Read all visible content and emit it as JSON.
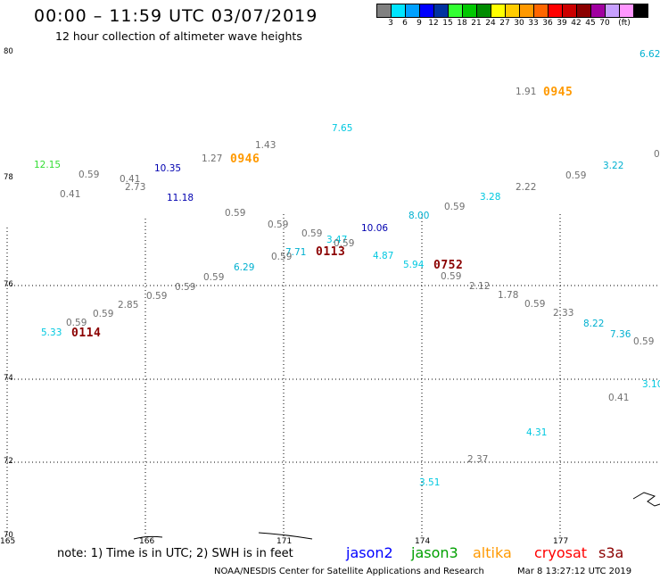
{
  "header": {
    "title": "00:00 – 11:59 UTC 03/07/2019",
    "subtitle": "12 hour collection of altimeter wave heights"
  },
  "legend": {
    "colors": [
      "#808080",
      "#00e5ff",
      "#00a0ff",
      "#0000ff",
      "#0032a0",
      "#32ff32",
      "#00c800",
      "#008c00",
      "#ffff00",
      "#ffcc00",
      "#ff9900",
      "#ff6600",
      "#ff0000",
      "#cc0000",
      "#8b0000",
      "#a000a0",
      "#c8a0ff",
      "#ff96ff",
      "#000000"
    ],
    "labels": [
      "3",
      "6",
      "9",
      "12",
      "15",
      "18",
      "21",
      "24",
      "27",
      "30",
      "33",
      "36",
      "39",
      "42",
      "45",
      "70",
      "(ft)"
    ]
  },
  "axes": {
    "lat_labels": [
      "80",
      "78",
      "76",
      "74",
      "72",
      "70"
    ],
    "lon_labels": [
      "165",
      "166",
      "171",
      "174",
      "177"
    ]
  },
  "observations": [
    {
      "text": "6.62",
      "color": "#00b0d0"
    },
    {
      "text": "1.91",
      "color": "#707070"
    },
    {
      "text": "7.65",
      "color": "#00c8e0"
    },
    {
      "text": "0",
      "color": "#707070"
    },
    {
      "text": "1.43",
      "color": "#707070"
    },
    {
      "text": "1.27",
      "color": "#707070"
    },
    {
      "text": "12.15",
      "color": "#33dd33"
    },
    {
      "text": "10.35",
      "color": "#0000b0"
    },
    {
      "text": "3.22",
      "color": "#00b0d0"
    },
    {
      "text": "0.59",
      "color": "#707070"
    },
    {
      "text": "0.41",
      "color": "#707070"
    },
    {
      "text": "2.73",
      "color": "#707070"
    },
    {
      "text": "2.22",
      "color": "#707070"
    },
    {
      "text": "0.59",
      "color": "#707070"
    },
    {
      "text": "0.41",
      "color": "#707070"
    },
    {
      "text": "11.18",
      "color": "#0000b0"
    },
    {
      "text": "3.28",
      "color": "#00c8e0"
    },
    {
      "text": "0.59",
      "color": "#707070"
    },
    {
      "text": "8.00",
      "color": "#00b0d0"
    },
    {
      "text": "0.59",
      "color": "#707070"
    },
    {
      "text": "0.59",
      "color": "#707070"
    },
    {
      "text": "10.06",
      "color": "#0000b0"
    },
    {
      "text": "0.59",
      "color": "#707070"
    },
    {
      "text": "3.47",
      "color": "#00c8e0"
    },
    {
      "text": "0.59",
      "color": "#707070"
    },
    {
      "text": "7.71",
      "color": "#00b0d0"
    },
    {
      "text": "0.59",
      "color": "#707070"
    },
    {
      "text": "4.87",
      "color": "#00c8e0"
    },
    {
      "text": "6.29",
      "color": "#00b0d0"
    },
    {
      "text": "5.94",
      "color": "#00c8e0"
    },
    {
      "text": "0.59",
      "color": "#707070"
    },
    {
      "text": "0.59",
      "color": "#707070"
    },
    {
      "text": "0.59",
      "color": "#707070"
    },
    {
      "text": "2.12",
      "color": "#707070"
    },
    {
      "text": "1.78",
      "color": "#707070"
    },
    {
      "text": "0.59",
      "color": "#707070"
    },
    {
      "text": "2.85",
      "color": "#707070"
    },
    {
      "text": "0.59",
      "color": "#707070"
    },
    {
      "text": "2.33",
      "color": "#707070"
    },
    {
      "text": "0.59",
      "color": "#707070"
    },
    {
      "text": "0.59",
      "color": "#707070"
    },
    {
      "text": "8.22",
      "color": "#00b0d0"
    },
    {
      "text": "5.33",
      "color": "#00c8e0"
    },
    {
      "text": "7.36",
      "color": "#00b0d0"
    },
    {
      "text": "0.59",
      "color": "#707070"
    },
    {
      "text": "3.10",
      "color": "#00c8e0"
    },
    {
      "text": "0.41",
      "color": "#707070"
    },
    {
      "text": "4.31",
      "color": "#00c8e0"
    },
    {
      "text": "2.37",
      "color": "#707070"
    },
    {
      "text": "3.51",
      "color": "#00c8e0"
    }
  ],
  "time_tags": [
    {
      "text": "0945",
      "color": "#ff9900"
    },
    {
      "text": "0946",
      "color": "#ff9900"
    },
    {
      "text": "0113",
      "color": "#8b0000"
    },
    {
      "text": "0752",
      "color": "#8b0000"
    },
    {
      "text": "0114",
      "color": "#8b0000"
    }
  ],
  "footer": {
    "note": "note:  1) Time is in UTC;  2) SWH is in feet",
    "missions": [
      {
        "name": "jason2",
        "color": "#0000ff"
      },
      {
        "name": "jason3",
        "color": "#00a000"
      },
      {
        "name": "altika",
        "color": "#ff9900"
      },
      {
        "name": "cryosat",
        "color": "#ff0000"
      },
      {
        "name": "s3a",
        "color": "#8b0000"
      }
    ],
    "credit": "NOAA/NESDIS Center for Satellite Applications and Research",
    "timestamp": "Mar  8 13:27:12 UTC 2019"
  }
}
